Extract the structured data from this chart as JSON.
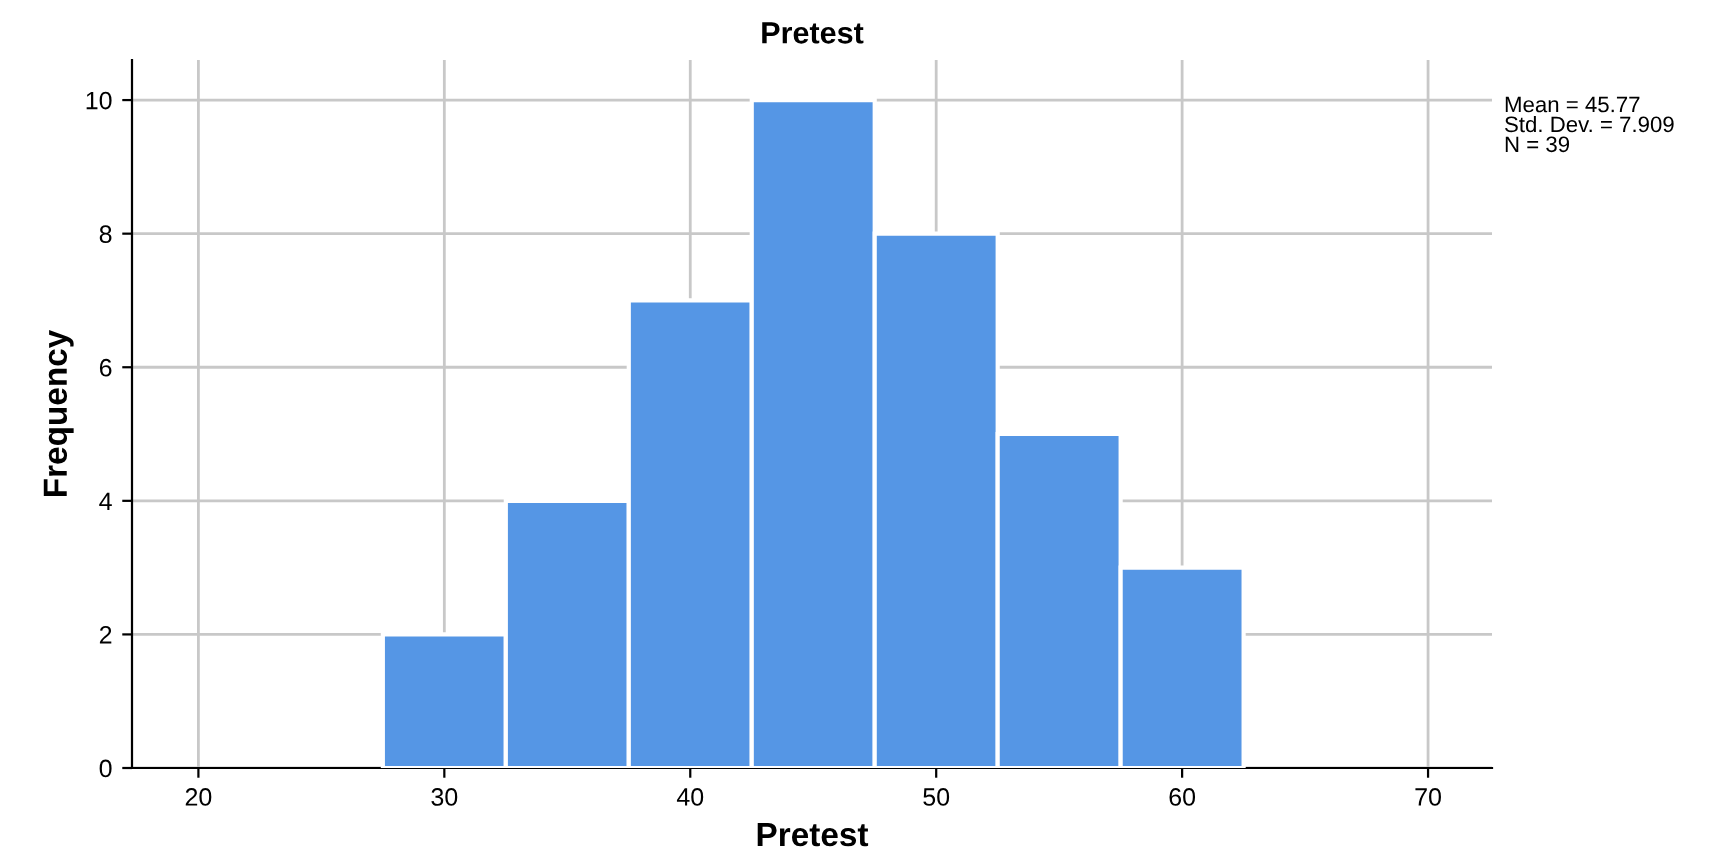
{
  "chart_data": {
    "type": "histogram",
    "title": "Pretest",
    "xlabel": "Pretest",
    "ylabel": "Frequency",
    "bins": [
      27.5,
      32.5,
      37.5,
      42.5,
      47.5,
      52.5,
      57.5,
      62.5
    ],
    "values": [
      2,
      4,
      7,
      10,
      8,
      5,
      3
    ],
    "color": "#5596e5",
    "xlim": [
      17.3,
      72.6
    ],
    "xticks": [
      20,
      30,
      40,
      50,
      60,
      70
    ],
    "ylim": [
      0,
      10.6
    ],
    "yticks": [
      0,
      2,
      4,
      6,
      8,
      10
    ],
    "grid": true,
    "legend": false,
    "annotations": [
      "Mean = 45.77\nStd. Dev. = 7.909\nN = 39"
    ]
  }
}
